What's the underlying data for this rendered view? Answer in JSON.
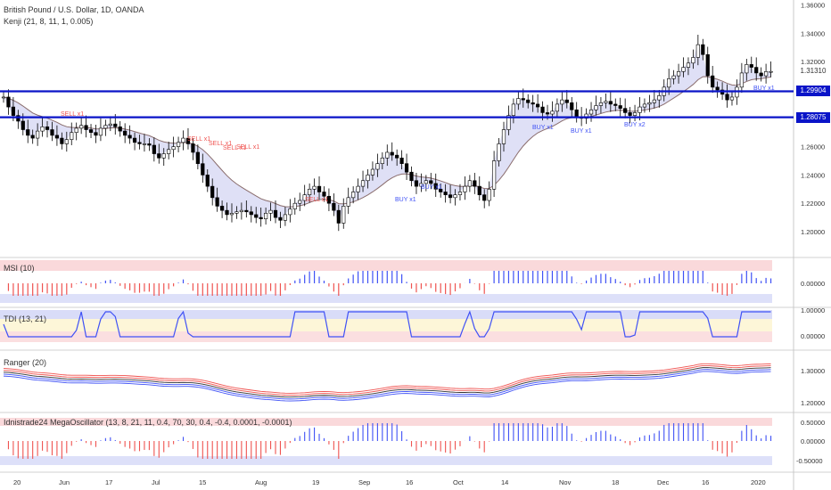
{
  "header": {
    "title": "British Pound / U.S. Dollar, 1D, OANDA",
    "indicator": "Kenji (21, 8, 11, 1, 0.005)"
  },
  "panes": {
    "msi": {
      "label": "MSI (10)",
      "axis": [
        "0.00000"
      ]
    },
    "tdi": {
      "label": "TDI (13, 21)",
      "axis": [
        "1.00000",
        "0.00000"
      ]
    },
    "ranger": {
      "label": "Ranger (20)",
      "axis": [
        "1.30000",
        "1.20000"
      ]
    },
    "mega": {
      "label": "Idnistrade24 MegaOscillator (13, 8, 21, 11, 0.4, 70, 30, 0.4, -0.4, 0.0001, -0.0001)",
      "axis": [
        "0.50000",
        "0.00000",
        "-0.50000"
      ]
    }
  },
  "price_axis": [
    "1.36000",
    "1.34000",
    "1.32000",
    "1.30000",
    "1.28000",
    "1.26000",
    "1.24000",
    "1.22000",
    "1.20000"
  ],
  "badges": {
    "level1": "1.29904",
    "level2": "1.28075",
    "last": "1.31310"
  },
  "signals": {
    "sell": [
      "SELL x1",
      "SELL x1",
      "SELL x1",
      "SELL x1",
      "SELL x1",
      "SELL x1"
    ],
    "buy": [
      "BUY x1",
      "BUY x1",
      "BUY x1",
      "BUY x2",
      "BUY x1",
      "BUY x1"
    ]
  },
  "time_axis": [
    "20",
    "Jun",
    "17",
    "Jul",
    "15",
    "Aug",
    "19",
    "Sep",
    "16",
    "Oct",
    "14",
    "Nov",
    "18",
    "Dec",
    "16",
    "2020"
  ],
  "colors": {
    "up": "#ffffff",
    "down": "#000000",
    "level": "#0a14c8",
    "red": "#ef5350",
    "blue": "#3f51f5",
    "redzone": "#f8c9cc",
    "bluezone": "#cfd3f6"
  },
  "chart_data": {
    "type": "candlestick",
    "levels": [
      1.29904,
      1.28075
    ],
    "last_price": 1.3131,
    "close_path": [
      1.295,
      1.288,
      1.282,
      1.278,
      1.272,
      1.268,
      1.266,
      1.271,
      1.274,
      1.272,
      1.268,
      1.266,
      1.262,
      1.265,
      1.27,
      1.273,
      1.275,
      1.272,
      1.27,
      1.268,
      1.273,
      1.275,
      1.276,
      1.274,
      1.271,
      1.268,
      1.266,
      1.263,
      1.262,
      1.262,
      1.261,
      1.255,
      1.252,
      1.255,
      1.258,
      1.26,
      1.263,
      1.266,
      1.262,
      1.256,
      1.248,
      1.24,
      1.232,
      1.224,
      1.218,
      1.215,
      1.212,
      1.213,
      1.214,
      1.215,
      1.214,
      1.212,
      1.21,
      1.209,
      1.213,
      1.215,
      1.21,
      1.208,
      1.212,
      1.216,
      1.22,
      1.222,
      1.226,
      1.23,
      1.232,
      1.228,
      1.225,
      1.22,
      1.215,
      1.206,
      1.218,
      1.224,
      1.228,
      1.232,
      1.236,
      1.24,
      1.244,
      1.248,
      1.252,
      1.256,
      1.254,
      1.252,
      1.248,
      1.242,
      1.236,
      1.232,
      1.234,
      1.236,
      1.234,
      1.23,
      1.228,
      1.226,
      1.224,
      1.226,
      1.228,
      1.232,
      1.236,
      1.232,
      1.226,
      1.222,
      1.23,
      1.25,
      1.262,
      1.272,
      1.282,
      1.29,
      1.294,
      1.293,
      1.291,
      1.29,
      1.288,
      1.284,
      1.283,
      1.285,
      1.29,
      1.293,
      1.291,
      1.286,
      1.281,
      1.28,
      1.283,
      1.286,
      1.289,
      1.291,
      1.292,
      1.29,
      1.289,
      1.287,
      1.284,
      1.282,
      1.284,
      1.288,
      1.29,
      1.291,
      1.293,
      1.296,
      1.302,
      1.308,
      1.31,
      1.313,
      1.316,
      1.319,
      1.323,
      1.332,
      1.325,
      1.31,
      1.302,
      1.3,
      1.297,
      1.293,
      1.295,
      1.302,
      1.312,
      1.318,
      1.316,
      1.312,
      1.31,
      1.313,
      1.3131
    ],
    "time_labels": [
      "20",
      "Jun",
      "17",
      "Jul",
      "15",
      "Aug",
      "19",
      "Sep",
      "16",
      "Oct",
      "14",
      "Nov",
      "18",
      "Dec",
      "16",
      "2020"
    ]
  }
}
